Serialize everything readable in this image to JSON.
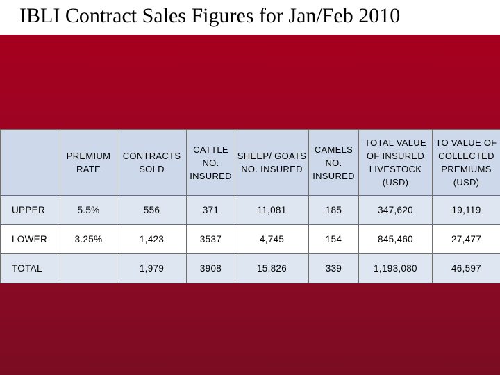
{
  "title": "IBLI Contract Sales Figures for Jan/Feb 2010",
  "colors": {
    "panel": "#9a0624",
    "header_fill": "#cdd9ea",
    "band_fill": "#dde6f1"
  },
  "table": {
    "headers": [
      "",
      "PREMIUM RATE",
      "CONTRACTS SOLD",
      "CATTLE NO. INSURED",
      "SHEEP/ GOATS NO. INSURED",
      "CAMELS NO. INSURED",
      "TOTAL VALUE OF INSURED LIVESTOCK (USD)",
      "TO VALUE OF COLLECTED PREMIUMS (USD)"
    ],
    "rows": [
      [
        "UPPER",
        "5.5%",
        "556",
        "371",
        "11,081",
        "185",
        "347,620",
        "19,119"
      ],
      [
        "LOWER",
        "3.25%",
        "1,423",
        "3537",
        "4,745",
        "154",
        "845,460",
        "27,477"
      ],
      [
        "TOTAL",
        "",
        "1,979",
        "3908",
        "15,826",
        "339",
        "1,193,080",
        "46,597"
      ]
    ]
  }
}
